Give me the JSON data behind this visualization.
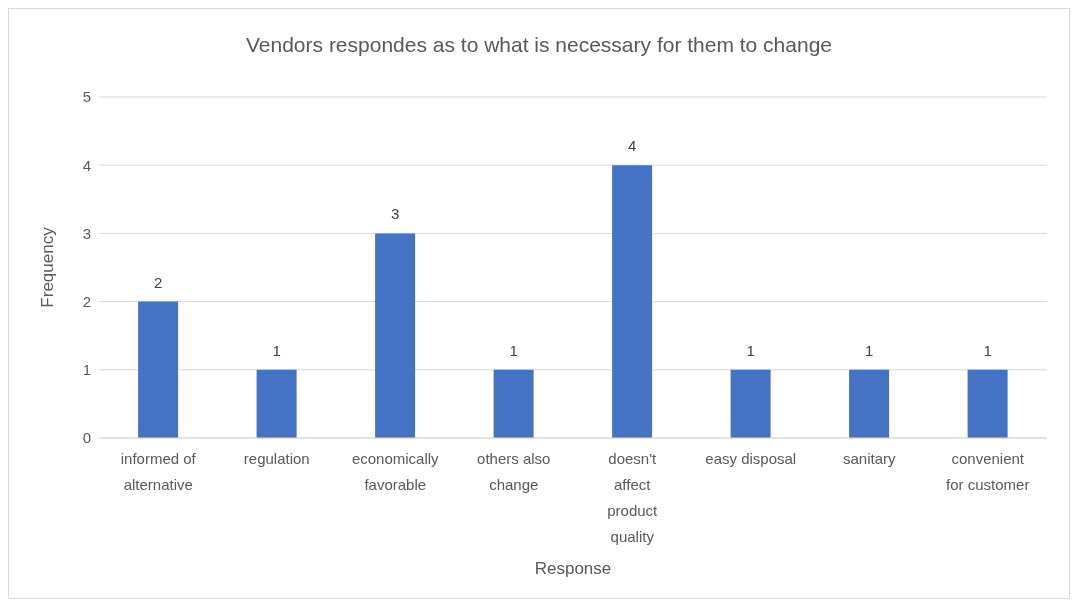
{
  "chart_data": {
    "type": "bar",
    "title": "Vendors respondes as to what is necessary for them to change",
    "xlabel": "Response",
    "ylabel": "Frequency",
    "categories": [
      "informed of alternative",
      "regulation",
      "economically favorable",
      "others also change",
      "doesn't affect product quality",
      "easy disposal",
      "sanitary",
      "convenient for customer"
    ],
    "values": [
      2,
      1,
      3,
      1,
      4,
      1,
      1,
      1
    ],
    "color": "#4472c4",
    "ylim": [
      0,
      5
    ],
    "yticks": [
      0,
      1,
      2,
      3,
      4,
      5
    ],
    "grid": "y",
    "legend": false,
    "data_labels": true
  }
}
